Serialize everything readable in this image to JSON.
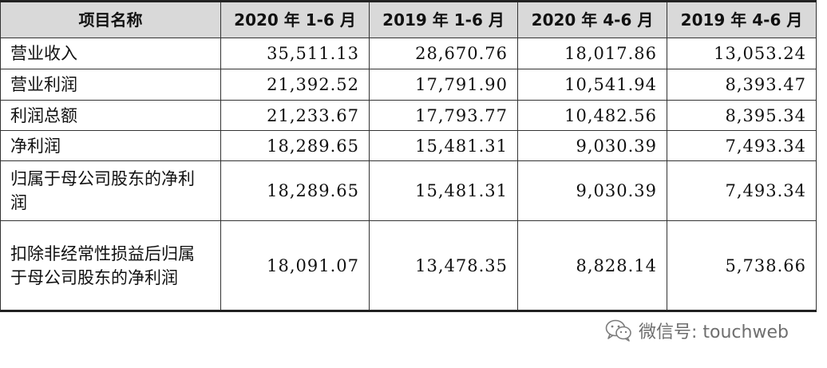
{
  "table": {
    "headers": [
      "项目名称",
      "2020 年 1-6 月",
      "2019 年 1-6 月",
      "2020 年 4-6 月",
      "2019 年 4-6 月"
    ],
    "rows": [
      {
        "label": "营业收入",
        "values": [
          "35,511.13",
          "28,670.76",
          "18,017.86",
          "13,053.24"
        ]
      },
      {
        "label": "营业利润",
        "values": [
          "21,392.52",
          "17,791.90",
          "10,541.94",
          "8,393.47"
        ]
      },
      {
        "label": "利润总额",
        "values": [
          "21,233.67",
          "17,793.77",
          "10,482.56",
          "8,395.34"
        ]
      },
      {
        "label": "净利润",
        "values": [
          "18,289.65",
          "15,481.31",
          "9,030.39",
          "7,493.34"
        ]
      },
      {
        "label": "归属于母公司股东的净利润",
        "values": [
          "18,289.65",
          "15,481.31",
          "9,030.39",
          "7,493.34"
        ]
      },
      {
        "label": "扣除非经常性损益后归属于母公司股东的净利润",
        "values": [
          "18,091.07",
          "13,478.35",
          "8,828.14",
          "5,738.66"
        ]
      }
    ]
  },
  "watermark": {
    "icon": "wechat-icon",
    "text": "微信号: touchweb"
  },
  "colors": {
    "header_bg": "#d9d9d9",
    "border": "#333333"
  }
}
